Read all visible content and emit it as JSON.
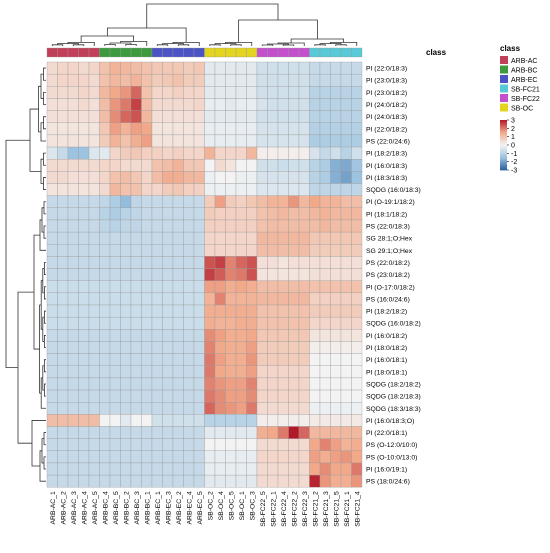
{
  "chart_data": {
    "type": "heatmap",
    "title": "",
    "xlabel": "",
    "ylabel": "",
    "annotation_title": "class",
    "colorbar_range": [
      -3,
      3
    ],
    "colorbar_ticks": [
      3,
      2,
      1,
      0,
      -1,
      -2,
      -3
    ],
    "colorscale": [
      "#2b5f9e",
      "#9cc3e0",
      "#f3f3f3",
      "#f2a98a",
      "#b21a2a"
    ],
    "legend_placement": "right",
    "classes": [
      {
        "name": "ARB-AC",
        "color": "#c13f59"
      },
      {
        "name": "ARB-BC",
        "color": "#3e9a3e"
      },
      {
        "name": "ARB-EC",
        "color": "#4b54c4"
      },
      {
        "name": "SB-FC21",
        "color": "#58c9d6"
      },
      {
        "name": "SB-FC22",
        "color": "#c44fcc"
      },
      {
        "name": "SB-OC",
        "color": "#e3d51f"
      }
    ],
    "columns": [
      "ARB-AC_1",
      "ARB-AC_2",
      "ARB-AC_3",
      "ARB-AC_4",
      "ARB-AC_5",
      "ARB-BC_4",
      "ARB-BC_5",
      "ARB-BC_2",
      "ARB-BC_3",
      "ARB-BC_1",
      "ARB-EC_1",
      "ARB-EC_3",
      "ARB-EC_2",
      "ARB-EC_4",
      "ARB-EC_5",
      "SB-OC_2",
      "SB-OC_4",
      "SB-OC_5",
      "SB-OC_1",
      "SB-OC_3",
      "SB-FC22_5",
      "SB-FC22_1",
      "SB-FC22_4",
      "SB-FC22_2",
      "SB-FC22_3",
      "SB-FC21_2",
      "SB-FC21_3",
      "SB-FC21_5",
      "SB-FC21_1",
      "SB-FC21_4"
    ],
    "column_class": [
      "ARB-AC",
      "ARB-AC",
      "ARB-AC",
      "ARB-AC",
      "ARB-AC",
      "ARB-BC",
      "ARB-BC",
      "ARB-BC",
      "ARB-BC",
      "ARB-BC",
      "ARB-EC",
      "ARB-EC",
      "ARB-EC",
      "ARB-EC",
      "ARB-EC",
      "SB-OC",
      "SB-OC",
      "SB-OC",
      "SB-OC",
      "SB-OC",
      "SB-FC22",
      "SB-FC22",
      "SB-FC22",
      "SB-FC22",
      "SB-FC22",
      "SB-FC21",
      "SB-FC21",
      "SB-FC21",
      "SB-FC21",
      "SB-FC21"
    ],
    "rows": [
      "PI (22:0/18:3)",
      "PI (23:0/18:3)",
      "PI (23:0/18:2)",
      "PI (24:0/18:2)",
      "PI (24:0/18:3)",
      "PI (22:0/18:2)",
      "PS (22:0/24:6)",
      "PI (18:2/18:3)",
      "PI (16:0/18:3)",
      "PI (18:3/18:3)",
      "SQDG (16:0/18:3)",
      "PI (O-19:1/18:2)",
      "PI (18:1/18:2)",
      "PS (22:0/18:3)",
      "SG 28:1;O;Hex",
      "SG 29:1;O;Hex",
      "PS (22:0/18:2)",
      "PS (23:0/18:2)",
      "PI (O-17:0/18:2)",
      "PS (16:0/24:6)",
      "PI (18:2/18:2)",
      "SQDG (16:0/18:2)",
      "PI (16:0/18:2)",
      "PI (18:0/18:2)",
      "PI (16:0/18:1)",
      "PI (18:0/18:1)",
      "SQDG (18:2/18:2)",
      "SQDG (18:2/18:3)",
      "SQDG (18:3/18:3)",
      "PI (16:0/18:3;O)",
      "PI (22:0/18:1)",
      "PS (O-12:0/10:0)",
      "PS (O-10:0/13:0)",
      "PI (16:0/19:1)",
      "PS (18:0/24:6)"
    ],
    "values": [
      [
        0.5,
        0.6,
        0.6,
        0.5,
        0.6,
        1.0,
        1.3,
        1.2,
        1.1,
        1.0,
        0.9,
        0.9,
        0.9,
        0.8,
        0.9,
        -0.3,
        -0.3,
        -0.3,
        -0.3,
        -0.3,
        -0.6,
        -0.6,
        -0.6,
        -0.6,
        -0.6,
        -0.8,
        -0.8,
        -0.8,
        -0.8,
        -0.8
      ],
      [
        0.5,
        0.6,
        0.6,
        0.6,
        0.5,
        1.0,
        1.2,
        1.1,
        1.3,
        1.0,
        0.8,
        0.9,
        1.0,
        0.8,
        0.8,
        -0.3,
        -0.3,
        -0.3,
        -0.3,
        -0.3,
        -0.6,
        -0.6,
        -0.6,
        -0.6,
        -0.6,
        -0.8,
        -0.8,
        -0.8,
        -0.8,
        -0.8
      ],
      [
        0.5,
        0.5,
        0.5,
        0.6,
        0.5,
        1.2,
        1.5,
        1.7,
        2.2,
        1.0,
        0.6,
        0.6,
        0.7,
        0.6,
        0.6,
        -0.3,
        -0.3,
        -0.3,
        -0.3,
        -0.3,
        -0.6,
        -0.6,
        -0.6,
        -0.6,
        -0.6,
        -1.0,
        -1.0,
        -1.0,
        -1.0,
        -1.0
      ],
      [
        0.4,
        0.4,
        0.4,
        0.5,
        0.4,
        1.1,
        1.7,
        2.0,
        2.6,
        1.1,
        0.5,
        0.5,
        0.5,
        0.5,
        0.6,
        -0.2,
        -0.2,
        -0.3,
        -0.2,
        -0.2,
        -0.5,
        -0.6,
        -0.6,
        -0.6,
        -0.6,
        -1.0,
        -1.0,
        -1.0,
        -1.0,
        -1.0
      ],
      [
        0.4,
        0.4,
        0.4,
        0.4,
        0.4,
        1.1,
        1.8,
        2.2,
        2.4,
        1.2,
        0.4,
        0.4,
        0.4,
        0.4,
        0.4,
        -0.3,
        -0.3,
        -0.3,
        -0.3,
        -0.3,
        -0.6,
        -0.6,
        -0.6,
        -0.6,
        -0.6,
        -1.0,
        -1.0,
        -1.0,
        -1.0,
        -1.0
      ],
      [
        0.3,
        0.3,
        0.3,
        0.3,
        0.3,
        0.9,
        1.6,
        1.3,
        1.6,
        1.5,
        0.3,
        0.3,
        0.3,
        0.3,
        0.3,
        -0.2,
        -0.2,
        -0.2,
        -0.2,
        -0.2,
        -0.5,
        -0.5,
        -0.5,
        -0.5,
        -0.5,
        -1.1,
        -1.1,
        -1.1,
        -1.1,
        -1.1
      ],
      [
        0.3,
        0.3,
        0.3,
        0.3,
        0.3,
        0.8,
        1.3,
        1.0,
        1.4,
        1.6,
        0.3,
        0.3,
        0.3,
        0.3,
        0.3,
        -0.2,
        -0.2,
        -0.2,
        -0.2,
        -0.2,
        -0.5,
        -0.5,
        -0.5,
        -0.5,
        -0.5,
        -1.2,
        -1.2,
        -1.2,
        -1.2,
        -1.2
      ],
      [
        -0.4,
        -0.8,
        -1.5,
        -1.5,
        -0.4,
        -0.3,
        0.6,
        0.8,
        0.9,
        0.7,
        0.7,
        0.6,
        0.7,
        0.6,
        0.6,
        1.3,
        0.6,
        0.6,
        0.6,
        1.2,
        0.1,
        0.1,
        0.1,
        0.1,
        0.1,
        -0.5,
        -0.8,
        -0.6,
        -1.0,
        -0.6
      ],
      [
        0.5,
        0.5,
        0.5,
        0.5,
        0.5,
        0.6,
        0.6,
        0.5,
        0.5,
        0.5,
        1.0,
        1.1,
        1.3,
        0.9,
        0.9,
        0.0,
        0.5,
        0.3,
        0.0,
        0.0,
        -0.6,
        -0.6,
        -0.7,
        -0.6,
        -0.6,
        -1.0,
        -1.2,
        -1.8,
        -1.9,
        -1.4
      ],
      [
        0.5,
        0.5,
        0.4,
        0.4,
        0.4,
        0.6,
        1.0,
        1.1,
        0.9,
        0.6,
        1.1,
        1.4,
        1.4,
        1.2,
        1.2,
        -0.1,
        0.0,
        0.0,
        -0.1,
        -0.1,
        -0.5,
        -0.5,
        -0.5,
        -0.5,
        -0.5,
        -1.0,
        -1.2,
        -1.8,
        -2.0,
        -1.5
      ],
      [
        0.3,
        0.3,
        0.3,
        0.3,
        0.3,
        0.5,
        1.2,
        1.0,
        1.0,
        0.6,
        0.6,
        0.8,
        0.9,
        0.7,
        0.7,
        -0.1,
        -0.1,
        -0.1,
        -0.1,
        -0.1,
        -0.4,
        -0.4,
        -0.4,
        -0.4,
        -0.4,
        -0.9,
        -0.9,
        -0.9,
        -0.9,
        -0.9
      ],
      [
        -0.8,
        -0.8,
        -0.8,
        -0.8,
        -0.8,
        -0.9,
        -1.2,
        -1.6,
        -0.9,
        -0.8,
        -0.8,
        -0.8,
        -0.8,
        -0.8,
        -0.8,
        0.8,
        1.6,
        0.8,
        0.7,
        0.9,
        1.1,
        1.3,
        1.3,
        1.7,
        1.2,
        1.5,
        1.3,
        1.3,
        1.1,
        1.1
      ],
      [
        -0.8,
        -0.8,
        -0.8,
        -0.8,
        -0.8,
        -1.0,
        -1.2,
        -1.0,
        -0.9,
        -0.8,
        -0.8,
        -0.8,
        -0.8,
        -0.8,
        -0.8,
        0.8,
        0.7,
        0.7,
        0.7,
        0.7,
        1.0,
        1.1,
        1.2,
        1.1,
        1.1,
        1.2,
        1.3,
        1.2,
        1.2,
        1.2
      ],
      [
        -0.8,
        -0.8,
        -0.8,
        -0.8,
        -0.8,
        -0.9,
        -1.0,
        -0.9,
        -0.9,
        -0.8,
        -0.8,
        -0.8,
        -0.8,
        -0.8,
        -0.8,
        0.7,
        0.7,
        0.7,
        0.7,
        0.7,
        1.0,
        1.1,
        1.1,
        1.1,
        1.1,
        1.1,
        1.2,
        1.1,
        1.1,
        1.1
      ],
      [
        -0.8,
        -0.8,
        -0.8,
        -0.8,
        -0.8,
        -0.8,
        -0.8,
        -0.8,
        -0.8,
        -0.8,
        -0.8,
        -0.8,
        -0.8,
        -0.8,
        -0.8,
        0.6,
        0.6,
        0.6,
        0.6,
        0.6,
        1.2,
        1.2,
        1.2,
        1.2,
        1.2,
        0.9,
        0.9,
        0.9,
        0.9,
        0.9
      ],
      [
        -0.8,
        -0.8,
        -0.8,
        -0.8,
        -0.8,
        -0.8,
        -0.8,
        -0.8,
        -0.8,
        -0.8,
        -0.8,
        -0.8,
        -0.8,
        -0.8,
        -0.8,
        0.6,
        0.6,
        0.6,
        0.6,
        0.6,
        1.1,
        1.1,
        1.1,
        1.1,
        1.1,
        0.8,
        0.8,
        0.8,
        0.8,
        0.8
      ],
      [
        -0.8,
        -0.8,
        -0.8,
        -0.8,
        -0.8,
        -0.8,
        -0.8,
        -0.8,
        -0.8,
        -0.8,
        -0.8,
        -0.8,
        -0.8,
        -0.8,
        -0.8,
        2.4,
        2.6,
        1.9,
        2.2,
        2.4,
        0.4,
        0.4,
        0.3,
        0.4,
        0.4,
        0.4,
        0.4,
        0.4,
        0.4,
        0.4
      ],
      [
        -0.8,
        -0.8,
        -0.8,
        -0.8,
        -0.8,
        -0.8,
        -0.8,
        -0.8,
        -0.8,
        -0.8,
        -0.8,
        -0.8,
        -0.8,
        -0.8,
        -0.8,
        2.6,
        2.3,
        1.9,
        2.0,
        2.4,
        0.3,
        0.3,
        0.3,
        0.3,
        0.3,
        0.4,
        0.4,
        0.4,
        0.4,
        0.4
      ],
      [
        -0.7,
        -0.7,
        -0.7,
        -0.7,
        -0.7,
        -0.7,
        -0.7,
        -0.7,
        -0.7,
        -0.7,
        -0.7,
        -0.7,
        -0.7,
        -0.7,
        -0.7,
        1.6,
        1.6,
        1.4,
        1.5,
        1.4,
        1.1,
        1.1,
        1.1,
        1.1,
        1.1,
        1.0,
        1.0,
        1.0,
        1.0,
        1.0
      ],
      [
        -0.7,
        -0.7,
        -0.7,
        -0.7,
        -0.7,
        -0.7,
        -0.7,
        -0.7,
        -0.7,
        -0.7,
        -0.7,
        -0.7,
        -0.7,
        -0.7,
        -0.7,
        1.3,
        1.9,
        1.3,
        1.3,
        1.3,
        1.2,
        1.2,
        1.2,
        1.2,
        1.2,
        0.7,
        0.7,
        0.7,
        0.7,
        0.7
      ],
      [
        -0.7,
        -0.7,
        -0.7,
        -0.7,
        -0.7,
        -0.7,
        -0.7,
        -0.7,
        -0.7,
        -0.7,
        -0.7,
        -0.7,
        -0.7,
        -0.7,
        -0.7,
        1.4,
        1.4,
        1.4,
        1.4,
        1.4,
        1.0,
        1.0,
        1.0,
        1.0,
        1.0,
        0.8,
        0.8,
        0.8,
        0.8,
        0.8
      ],
      [
        -0.7,
        -0.7,
        -0.7,
        -0.7,
        -0.7,
        -0.7,
        -0.7,
        -0.7,
        -0.7,
        -0.7,
        -0.7,
        -0.7,
        -0.7,
        -0.7,
        -0.7,
        1.4,
        1.3,
        1.3,
        1.4,
        1.4,
        1.0,
        1.0,
        1.0,
        1.0,
        1.0,
        0.6,
        0.6,
        0.6,
        0.6,
        0.6
      ],
      [
        -0.8,
        -0.8,
        -0.8,
        -0.8,
        -0.8,
        -0.8,
        -0.8,
        -0.8,
        -0.8,
        -0.8,
        -0.8,
        -0.8,
        -0.8,
        -0.8,
        -0.8,
        1.8,
        1.6,
        1.4,
        1.4,
        1.5,
        0.9,
        0.9,
        0.9,
        0.9,
        0.9,
        0.3,
        0.3,
        0.3,
        0.3,
        0.3
      ],
      [
        -0.8,
        -0.8,
        -0.8,
        -0.8,
        -0.8,
        -0.8,
        -0.8,
        -0.8,
        -0.8,
        -0.8,
        -0.8,
        -0.8,
        -0.8,
        -0.8,
        -0.8,
        1.9,
        1.5,
        1.4,
        1.4,
        1.6,
        0.8,
        0.8,
        0.8,
        0.8,
        0.8,
        0.1,
        0.1,
        0.1,
        0.1,
        0.1
      ],
      [
        -0.8,
        -0.8,
        -0.8,
        -0.8,
        -0.8,
        -0.8,
        -0.8,
        -0.8,
        -0.8,
        -0.8,
        -0.8,
        -0.8,
        -0.8,
        -0.8,
        -0.8,
        2.0,
        1.6,
        1.4,
        1.4,
        1.7,
        0.8,
        0.8,
        0.8,
        0.8,
        0.8,
        0.0,
        0.0,
        0.0,
        0.0,
        0.0
      ],
      [
        -0.8,
        -0.8,
        -0.8,
        -0.8,
        -0.8,
        -0.8,
        -0.8,
        -0.8,
        -0.8,
        -0.8,
        -0.8,
        -0.8,
        -0.8,
        -0.8,
        -0.8,
        2.0,
        1.5,
        1.4,
        1.4,
        1.6,
        0.6,
        0.6,
        0.6,
        0.6,
        0.6,
        0.0,
        0.0,
        0.0,
        0.0,
        0.0
      ],
      [
        -0.8,
        -0.8,
        -0.8,
        -0.8,
        -0.8,
        -0.8,
        -0.8,
        -0.8,
        -0.8,
        -0.8,
        -0.8,
        -0.8,
        -0.8,
        -0.8,
        -0.8,
        1.9,
        1.7,
        1.6,
        1.6,
        1.9,
        0.6,
        0.6,
        0.6,
        0.6,
        0.6,
        0.0,
        0.0,
        0.0,
        0.0,
        0.0
      ],
      [
        -0.8,
        -0.8,
        -0.8,
        -0.8,
        -0.8,
        -0.8,
        -0.8,
        -0.8,
        -0.8,
        -0.8,
        -0.8,
        -0.8,
        -0.8,
        -0.8,
        -0.8,
        2.0,
        1.8,
        1.6,
        1.6,
        1.8,
        0.6,
        0.6,
        0.6,
        0.6,
        0.6,
        0.0,
        0.0,
        0.0,
        0.0,
        0.0
      ],
      [
        -0.8,
        -0.8,
        -0.8,
        -0.8,
        -0.8,
        -0.8,
        -0.8,
        -0.8,
        -0.8,
        -0.8,
        -0.8,
        -0.8,
        -0.8,
        -0.8,
        -0.8,
        2.2,
        1.8,
        1.7,
        1.6,
        2.0,
        0.5,
        0.5,
        0.5,
        0.5,
        0.5,
        -0.1,
        -0.1,
        -0.1,
        -0.1,
        -0.1
      ],
      [
        1.1,
        1.1,
        1.1,
        1.1,
        1.1,
        0.0,
        0.0,
        -0.3,
        0.0,
        0.0,
        -0.6,
        -0.6,
        -0.6,
        -0.6,
        -0.6,
        -1.0,
        -1.0,
        -1.0,
        -1.0,
        -1.0,
        0.1,
        0.1,
        0.1,
        0.1,
        0.1,
        0.2,
        0.2,
        0.2,
        0.2,
        0.2
      ],
      [
        -0.8,
        -0.8,
        -0.8,
        -0.8,
        -0.8,
        -0.8,
        -0.8,
        -0.8,
        -0.8,
        -0.8,
        -0.8,
        -0.8,
        -0.8,
        -0.8,
        -0.8,
        -0.3,
        -0.3,
        -0.3,
        -0.3,
        -0.3,
        1.4,
        1.5,
        2.0,
        3.0,
        2.2,
        1.2,
        1.2,
        1.2,
        1.2,
        1.2
      ],
      [
        -0.8,
        -0.8,
        -0.8,
        -0.8,
        -0.8,
        -0.8,
        -0.8,
        -0.8,
        -0.8,
        -0.8,
        -0.8,
        -0.8,
        -0.8,
        -0.8,
        -0.8,
        0.0,
        0.0,
        0.0,
        0.0,
        0.0,
        0.5,
        0.5,
        0.5,
        0.5,
        0.5,
        1.5,
        1.9,
        1.6,
        1.3,
        1.4
      ],
      [
        -0.8,
        -0.8,
        -0.8,
        -0.8,
        -0.8,
        -0.8,
        -0.8,
        -0.8,
        -0.8,
        -0.8,
        -0.8,
        -0.8,
        -0.8,
        -0.8,
        -0.8,
        -0.2,
        -0.2,
        -0.2,
        -0.2,
        -0.2,
        0.6,
        0.6,
        0.6,
        0.6,
        0.6,
        1.6,
        1.4,
        1.6,
        1.7,
        1.5
      ],
      [
        -0.8,
        -0.8,
        -0.8,
        -0.8,
        -0.8,
        -0.8,
        -0.8,
        -0.8,
        -0.8,
        -0.8,
        -0.8,
        -0.8,
        -0.8,
        -0.8,
        -0.8,
        -0.2,
        -0.2,
        -0.2,
        -0.2,
        -0.2,
        0.5,
        0.5,
        0.5,
        0.5,
        0.5,
        1.5,
        1.8,
        1.5,
        1.5,
        2.0
      ],
      [
        -0.8,
        -0.8,
        -0.8,
        -0.8,
        -0.8,
        -0.8,
        -0.8,
        -0.8,
        -0.8,
        -0.8,
        -0.8,
        -0.8,
        -0.8,
        -0.8,
        -0.8,
        -0.3,
        -0.3,
        -0.3,
        -0.3,
        -0.3,
        0.5,
        0.5,
        0.5,
        0.5,
        0.5,
        2.9,
        1.7,
        1.4,
        1.4,
        1.7
      ]
    ]
  }
}
